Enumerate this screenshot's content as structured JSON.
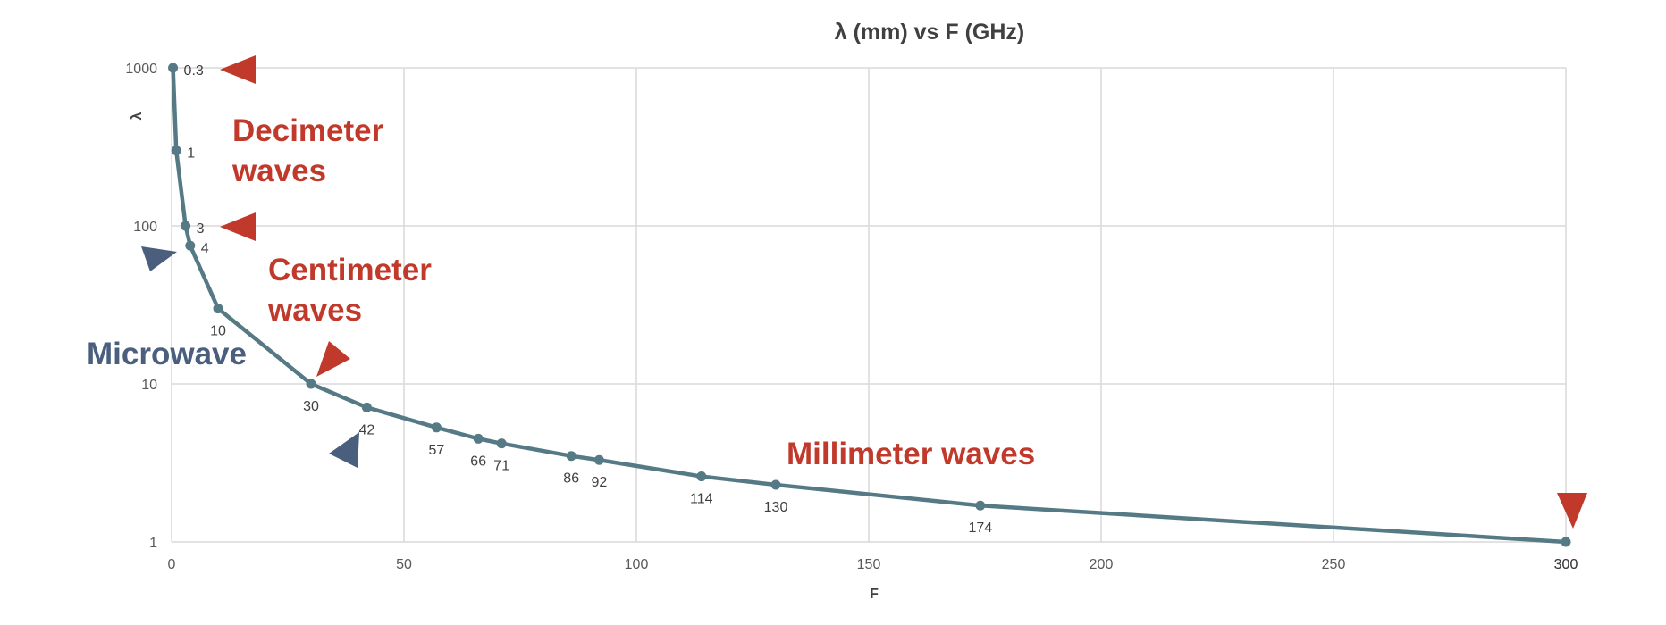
{
  "chart_data": {
    "type": "line",
    "title": "λ (mm) vs F (GHz)",
    "xlabel": "F",
    "ylabel": "λ",
    "xlim": [
      0,
      300
    ],
    "ylim": [
      1,
      1000
    ],
    "yscale": "log",
    "grid": true,
    "x_ticks": [
      0,
      50,
      100,
      150,
      200,
      250,
      300
    ],
    "y_ticks": [
      1,
      10,
      100,
      1000
    ],
    "series": [
      {
        "color": "#557a85",
        "points": [
          {
            "x": 0.3,
            "y": 1000,
            "label": "0.3"
          },
          {
            "x": 1,
            "y": 300,
            "label": "1"
          },
          {
            "x": 3,
            "y": 100,
            "label": "3"
          },
          {
            "x": 4,
            "y": 75,
            "label": "4"
          },
          {
            "x": 10,
            "y": 30,
            "label": "10"
          },
          {
            "x": 30,
            "y": 10,
            "label": "30"
          },
          {
            "x": 42,
            "y": 7.1,
            "label": "42"
          },
          {
            "x": 57,
            "y": 5.3,
            "label": "57"
          },
          {
            "x": 66,
            "y": 4.5,
            "label": "66"
          },
          {
            "x": 71,
            "y": 4.2,
            "label": "71"
          },
          {
            "x": 86,
            "y": 3.5,
            "label": "86"
          },
          {
            "x": 92,
            "y": 3.3,
            "label": "92"
          },
          {
            "x": 114,
            "y": 2.6,
            "label": "114"
          },
          {
            "x": 130,
            "y": 2.3,
            "label": "130"
          },
          {
            "x": 174,
            "y": 1.7,
            "label": "174"
          },
          {
            "x": 300,
            "y": 1,
            "label": "300"
          }
        ]
      }
    ],
    "annotations": [
      {
        "text": "Decimeter",
        "color": "#c0392b"
      },
      {
        "text": "waves",
        "color": "#c0392b"
      },
      {
        "text": "Centimeter",
        "color": "#c0392b"
      },
      {
        "text": "waves",
        "color": "#c0392b"
      },
      {
        "text": "Microwave",
        "color": "#4a5e7e"
      },
      {
        "text": "Millimeter  waves",
        "color": "#c0392b"
      }
    ]
  },
  "colors": {
    "red": "#c0392b",
    "blue": "#4a5e7e",
    "line": "#557a85",
    "grid": "#d9d9d9"
  }
}
